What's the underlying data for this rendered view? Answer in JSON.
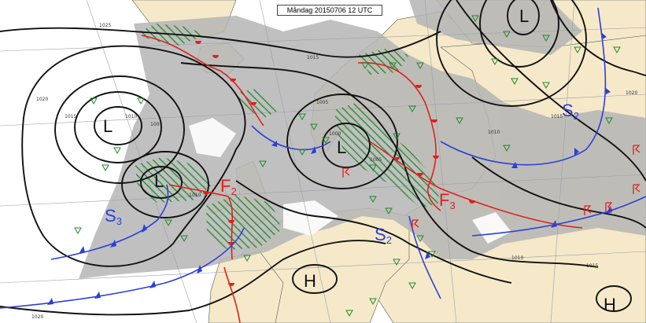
{
  "title": "Måndag 20150706 12 UTC",
  "pressure_centers": [
    {
      "kind": "low",
      "symbol": "L"
    },
    {
      "kind": "low",
      "symbol": "L"
    },
    {
      "kind": "low",
      "symbol": "L"
    },
    {
      "kind": "low",
      "symbol": "L"
    },
    {
      "kind": "high",
      "symbol": "H"
    },
    {
      "kind": "high",
      "symbol": "H"
    }
  ],
  "front_labels": [
    {
      "letter": "F",
      "index": "2",
      "color": "#e0201c"
    },
    {
      "letter": "F",
      "index": "3",
      "color": "#e0201c"
    },
    {
      "letter": "S",
      "index": "3",
      "color": "#2b3fd9"
    },
    {
      "letter": "S",
      "index": "2",
      "color": "#2b3fd9"
    },
    {
      "letter": "S",
      "index": "2",
      "color": "#2b3fd9"
    }
  ],
  "isobar_labels": [
    "1025",
    "1020",
    "1015",
    "1010",
    "1005",
    "1010",
    "1015",
    "1005",
    "1000",
    "1005",
    "1010",
    "1015",
    "1020",
    "1010",
    "1015",
    "1020"
  ],
  "colors": {
    "isobar": "#111111",
    "warm_front": "#e0201c",
    "cold_front": "#2b3fd9",
    "precipitation_hatch": "#1e8a2a",
    "shower_symbol": "#1e8a2a",
    "thunder_symbol": "#e0201c",
    "land": "#f5e9c9",
    "cloud": "#b5b5b5",
    "sea": "#ffffff"
  },
  "symbols": [
    "shower-triangle",
    "thunderstorm-symbol",
    "precipitation-hatching"
  ]
}
